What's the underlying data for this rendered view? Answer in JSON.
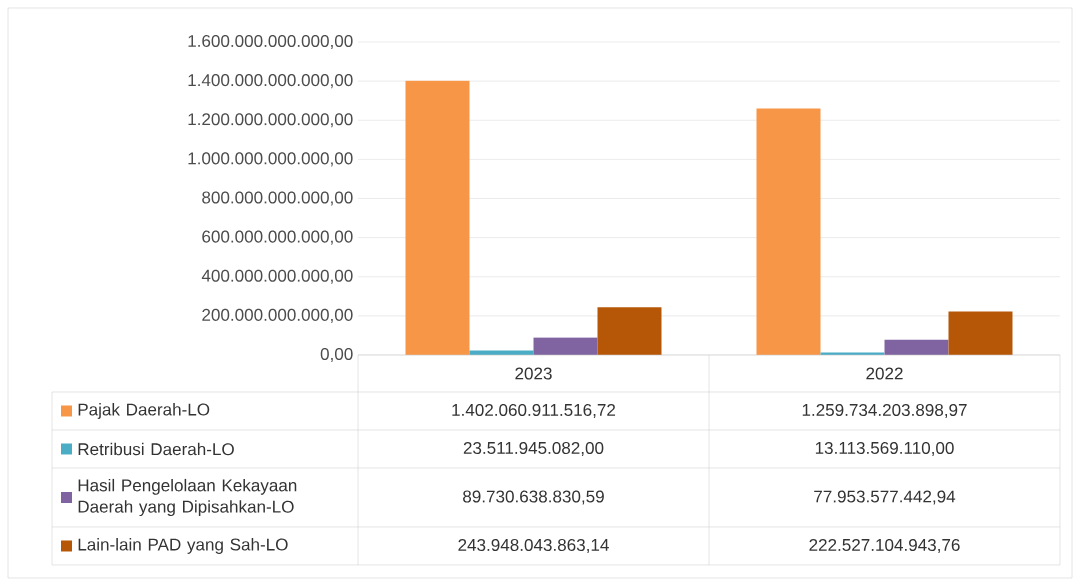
{
  "chart_data": {
    "type": "bar",
    "categories": [
      "2023",
      "2022"
    ],
    "series": [
      {
        "name": "Pajak Daerah-LO",
        "color": "#f79646",
        "values": [
          1402060911516.72,
          1259734203898.97
        ],
        "value_labels": [
          "1.402.060.911.516,72",
          "1.259.734.203.898,97"
        ]
      },
      {
        "name": "Retribusi Daerah-LO",
        "color": "#4bacc6",
        "values": [
          23511945082.0,
          13113569110.0
        ],
        "value_labels": [
          "23.511.945.082,00",
          "13.113.569.110,00"
        ]
      },
      {
        "name": "Hasil Pengelolaan Kekayaan Daerah yang Dipisahkan-LO",
        "color": "#8064a2",
        "values": [
          89730638830.59,
          77953577442.94
        ],
        "value_labels": [
          "89.730.638.830,59",
          "77.953.577.442,94"
        ]
      },
      {
        "name": "Lain-lain PAD yang Sah-LO",
        "color": "#b65708",
        "values": [
          243948043863.14,
          222527104943.76
        ],
        "value_labels": [
          "243.948.043.863,14",
          "222.527.104.943,76"
        ]
      }
    ],
    "ylim": [
      0,
      1600000000000
    ],
    "yticks": [
      {
        "value": 0,
        "label": "0,00"
      },
      {
        "value": 200000000000,
        "label": "200.000.000.000,00"
      },
      {
        "value": 400000000000,
        "label": "400.000.000.000,00"
      },
      {
        "value": 600000000000,
        "label": "600.000.000.000,00"
      },
      {
        "value": 800000000000,
        "label": "800.000.000.000,00"
      },
      {
        "value": 1000000000000,
        "label": "1.000.000.000.000,00"
      },
      {
        "value": 1200000000000,
        "label": "1.200.000.000.000,00"
      },
      {
        "value": 1400000000000,
        "label": "1.400.000.000.000,00"
      },
      {
        "value": 1600000000000,
        "label": "1.600.000.000.000,00"
      }
    ],
    "grid": "y",
    "legend": "bottom"
  }
}
